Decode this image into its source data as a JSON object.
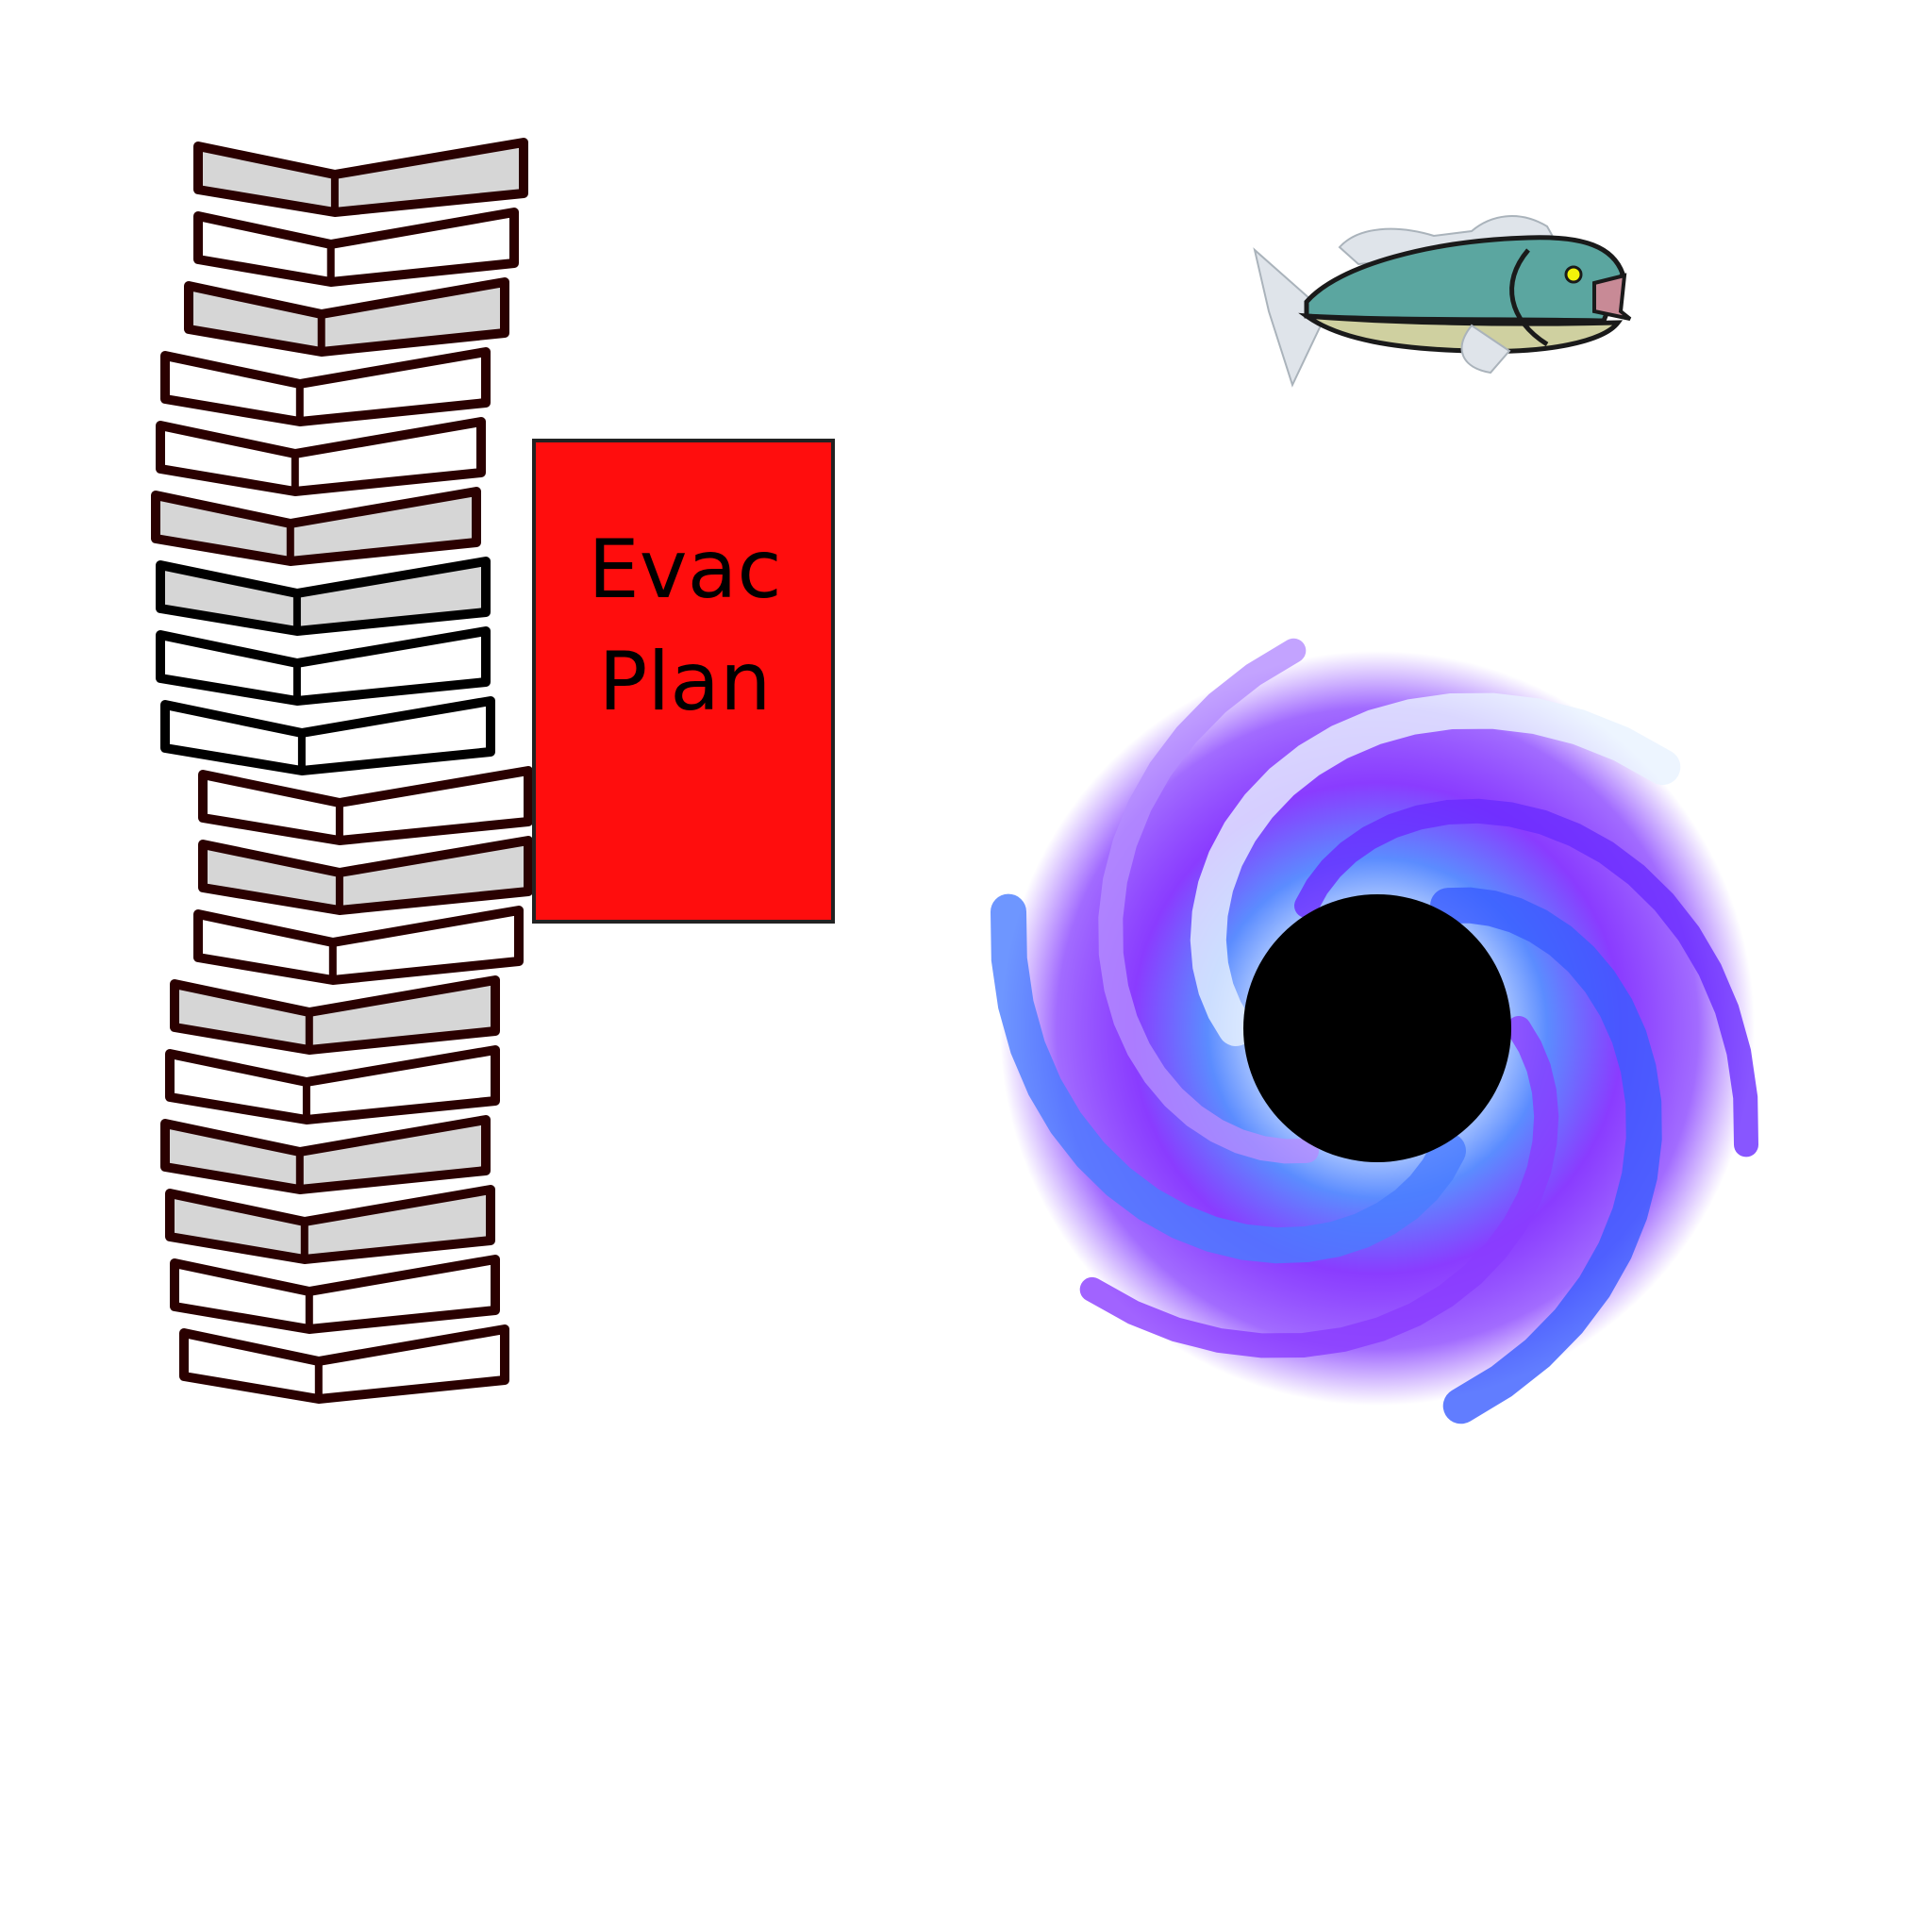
{
  "colors": {
    "background": "#ffffff",
    "book_cover_dark": "#2a0000",
    "book_cover_black": "#000000",
    "page_light": "#d6d6d6",
    "page_white": "#ffffff",
    "sign_fill": "#ff0d0d",
    "sign_border": "#222222",
    "fish_back": "#5ba6a0",
    "fish_belly": "#cfd0a0",
    "fish_fin": "#dfe4ea",
    "vortex_purple": "#7a2cff",
    "vortex_blue": "#3a6cff",
    "vortex_light": "#d9ecff",
    "hole": "#000000"
  },
  "icons": {
    "books": "book-stack-icon",
    "fish": "fish-icon",
    "vortex": "black-hole-icon"
  },
  "sign": {
    "line1": "Evac",
    "line2": "Plan"
  }
}
